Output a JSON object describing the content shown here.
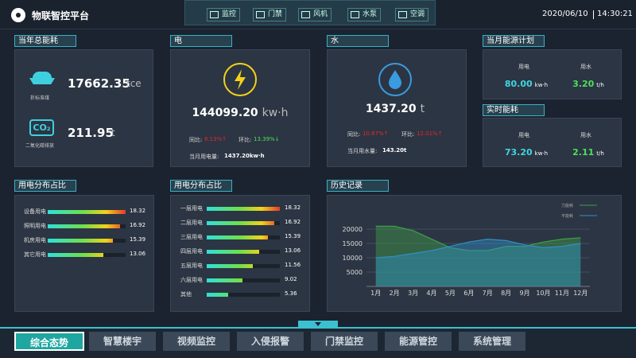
{
  "header": {
    "title": "物联智控平台",
    "tabs": [
      "监控",
      "门禁",
      "风机",
      "水泵",
      "空调"
    ],
    "date": "2020/06/10",
    "time": "14:30:21"
  },
  "annual": {
    "title": "当年总能耗",
    "coal": {
      "value": "17662.35",
      "unit": "tce",
      "label": "折标准煤"
    },
    "co2": {
      "icon": "CO₂",
      "value": "211.95",
      "unit": "t",
      "label": "二氧化碳排放"
    }
  },
  "electricity": {
    "title": "电",
    "value": "144099.20",
    "unit": "kw·h",
    "yoy_label": "同比:",
    "yoy": "8.13%↑",
    "mom_label": "环比:",
    "mom": "13.39%↓",
    "month_label": "当月用电量:",
    "month_value": "1437.20kw·h"
  },
  "water": {
    "title": "水",
    "value": "1437.20",
    "unit": "t",
    "yoy_label": "同比:",
    "yoy": "10.67%↑",
    "mom_label": "环比:",
    "mom": "12.01%↑",
    "month_label": "当月用水量:",
    "month_value": "143.20t"
  },
  "plan": {
    "title": "当月能源计划",
    "items": [
      {
        "label": "用电",
        "value": "80.00",
        "unit": "kw·h",
        "color": "#3fd6e0"
      },
      {
        "label": "用水",
        "value": "3.20",
        "unit": "t/h",
        "color": "#4ee05a"
      }
    ]
  },
  "realtime": {
    "title": "实时能耗",
    "items": [
      {
        "label": "用电",
        "value": "73.20",
        "unit": "kw·h",
        "color": "#3fd6e0"
      },
      {
        "label": "用水",
        "value": "2.11",
        "unit": "t/h",
        "color": "#4ee05a"
      }
    ]
  },
  "chart_data": [
    {
      "type": "bar",
      "horizontal": true,
      "title": "用电分布占比",
      "categories": [
        "设备用电",
        "照明用电",
        "机房用电",
        "其它用电"
      ],
      "values": [
        18.32,
        16.92,
        15.39,
        13.06
      ]
    },
    {
      "type": "bar",
      "horizontal": true,
      "title": "用电分布占比",
      "categories": [
        "一层用电",
        "二层用电",
        "三层用电",
        "四层用电",
        "五层用电",
        "六层用电",
        "其他"
      ],
      "values": [
        18.32,
        16.92,
        15.39,
        13.06,
        11.56,
        9.02,
        5.36
      ]
    },
    {
      "type": "line",
      "title": "历史记录",
      "categories": [
        "1月",
        "2月",
        "3月",
        "4月",
        "5月",
        "6月",
        "7月",
        "8月",
        "9月",
        "10月",
        "11月",
        "12月"
      ],
      "series": [
        {
          "name": "力能耗",
          "color": "#3f9e4a",
          "values": [
            21000,
            21000,
            19500,
            16500,
            13500,
            12500,
            12500,
            14000,
            14000,
            15500,
            16500,
            17000
          ]
        },
        {
          "name": "平能耗",
          "color": "#2f8fc8",
          "values": [
            10000,
            10500,
            11500,
            12500,
            14000,
            15500,
            16500,
            16000,
            14500,
            13500,
            14000,
            15000
          ]
        }
      ],
      "ylim": [
        0,
        25000
      ],
      "yticks": [
        5000,
        10000,
        15000,
        20000
      ],
      "grid": true
    }
  ],
  "nav": {
    "items": [
      "综合态势",
      "智慧楼宇",
      "视频监控",
      "入侵报警",
      "门禁监控",
      "能源管控",
      "系统管理"
    ],
    "active": 0
  }
}
